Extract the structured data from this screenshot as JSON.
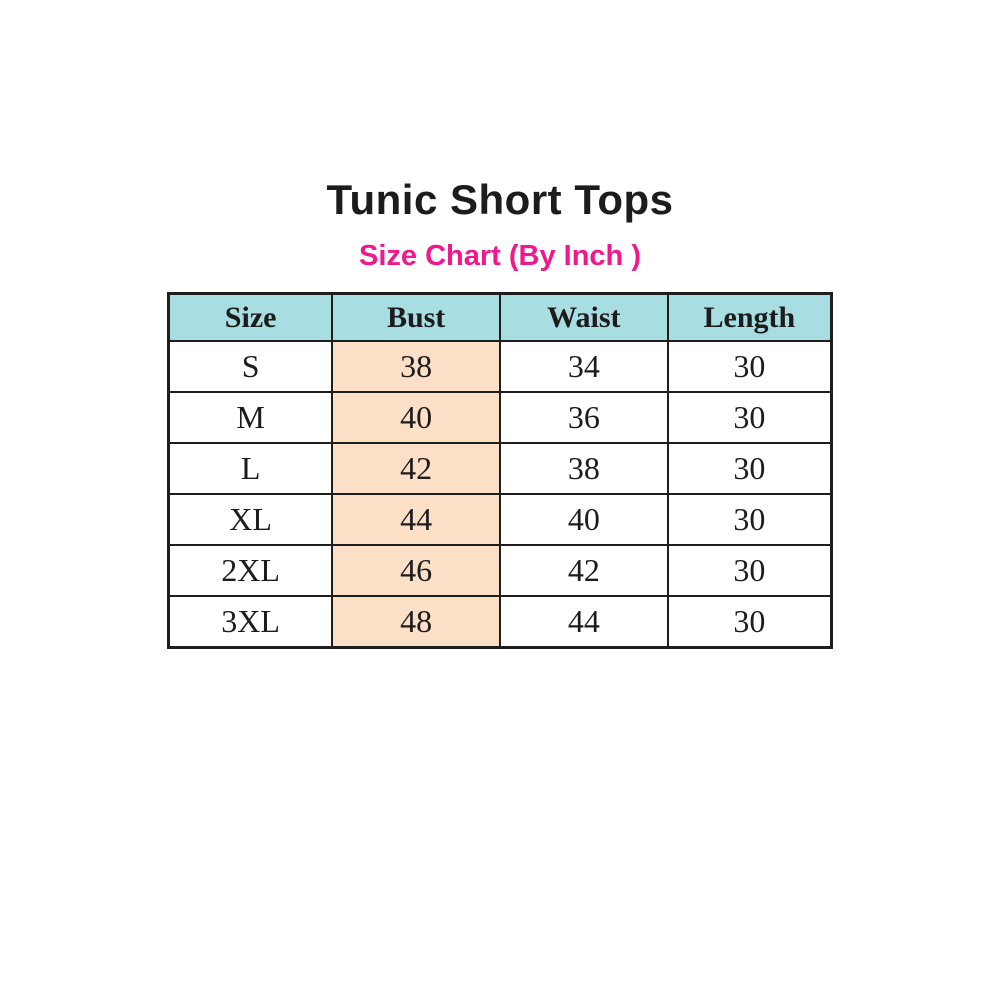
{
  "page": {
    "title": "Tunic Short Tops",
    "subtitle": "Size Chart (By Inch )"
  },
  "colors": {
    "header_bg": "#a8dde2",
    "bust_highlight_bg": "#fbdfc6",
    "subtitle_pink": "#f0188c",
    "border": "#1e1e1e",
    "text": "#1c1c1c",
    "background": "#ffffff"
  },
  "table": {
    "headers": [
      "Size",
      "Bust",
      "Waist",
      "Length"
    ],
    "rows": [
      [
        "S",
        "38",
        "34",
        "30"
      ],
      [
        "M",
        "40",
        "36",
        "30"
      ],
      [
        "L",
        "42",
        "38",
        "30"
      ],
      [
        "XL",
        "44",
        "40",
        "30"
      ],
      [
        "2XL",
        "46",
        "42",
        "30"
      ],
      [
        "3XL",
        "48",
        "44",
        "30"
      ]
    ]
  },
  "chart_data": {
    "type": "table",
    "title": "Tunic Short Tops",
    "subtitle": "Size Chart (By Inch )",
    "columns": [
      "Size",
      "Bust",
      "Waist",
      "Length"
    ],
    "rows": [
      {
        "Size": "S",
        "Bust": 38,
        "Waist": 34,
        "Length": 30
      },
      {
        "Size": "M",
        "Bust": 40,
        "Waist": 36,
        "Length": 30
      },
      {
        "Size": "L",
        "Bust": 42,
        "Waist": 38,
        "Length": 30
      },
      {
        "Size": "XL",
        "Bust": 44,
        "Waist": 40,
        "Length": 30
      },
      {
        "Size": "2XL",
        "Bust": 46,
        "Waist": 42,
        "Length": 30
      },
      {
        "Size": "3XL",
        "Bust": 48,
        "Waist": 44,
        "Length": 30
      }
    ],
    "units": "inches"
  }
}
